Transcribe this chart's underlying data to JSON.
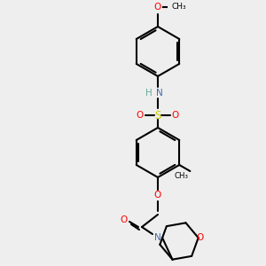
{
  "bg_color": "#eeeeee",
  "bond_color": "#000000",
  "bond_lw": 1.5,
  "atom_colors": {
    "O": "#ff0000",
    "N": "#4169aa",
    "S": "#cccc00",
    "H": "#6aaa99",
    "C": "#000000"
  },
  "font_size": 7.5,
  "font_size_small": 6.5
}
